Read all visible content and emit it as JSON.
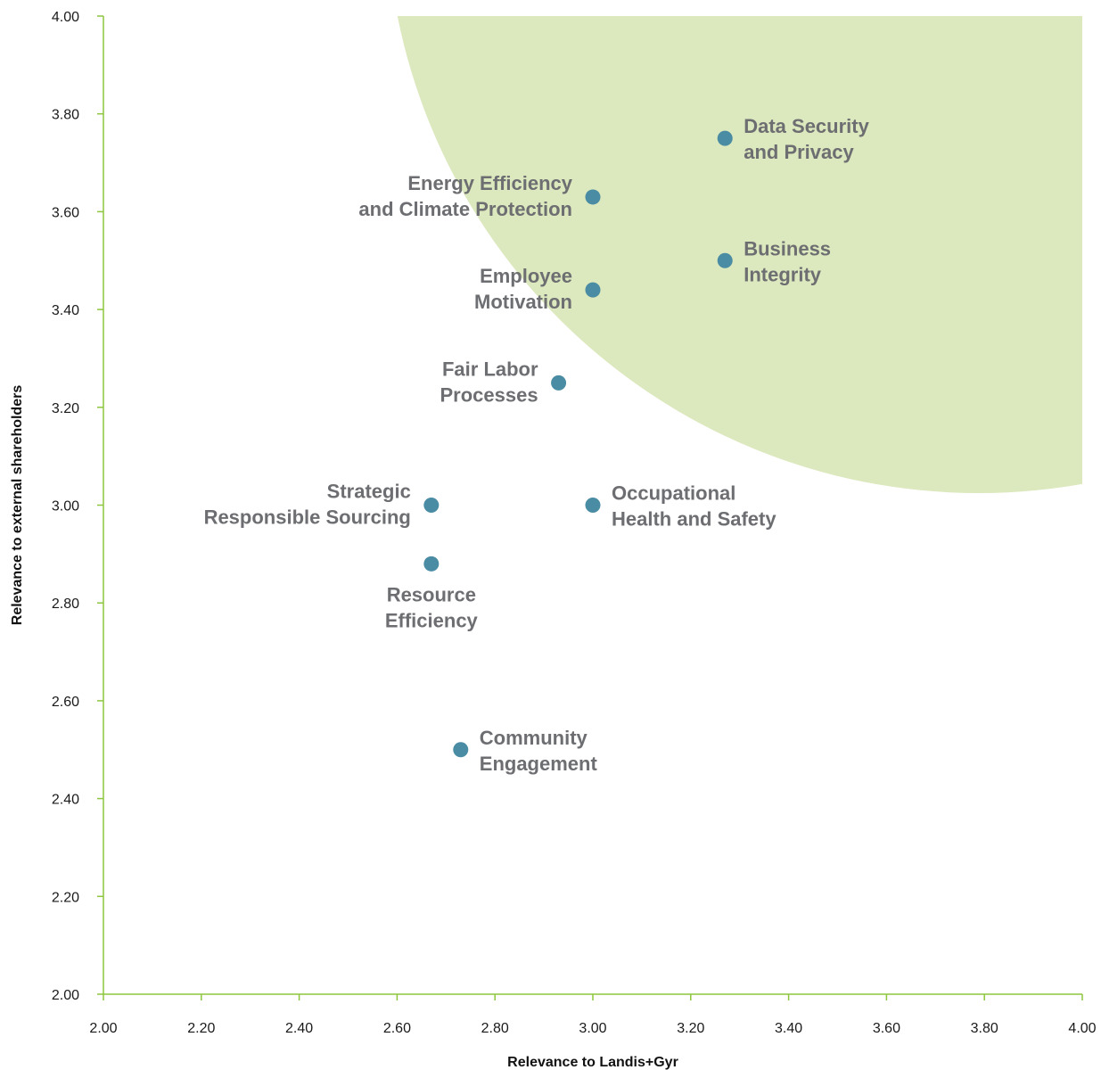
{
  "chart_data": {
    "type": "scatter",
    "title": "",
    "xlabel": "Relevance to Landis+Gyr",
    "ylabel": "Relevance to external shareholders",
    "xlim": [
      2.0,
      4.0
    ],
    "ylim": [
      2.0,
      4.0
    ],
    "x_ticks": [
      "2.00",
      "2.20",
      "2.40",
      "2.60",
      "2.80",
      "3.00",
      "3.20",
      "3.40",
      "3.60",
      "3.80",
      "4.00"
    ],
    "y_ticks": [
      "2.00",
      "2.20",
      "2.40",
      "2.60",
      "2.80",
      "3.00",
      "3.20",
      "3.40",
      "3.60",
      "3.80",
      "4.00"
    ],
    "grid": false,
    "points": [
      {
        "label": [
          "Data Security",
          "and Privacy"
        ],
        "x": 3.27,
        "y": 3.75,
        "label_side": "right"
      },
      {
        "label": [
          "Energy Efficiency",
          "and Climate Protection"
        ],
        "x": 3.0,
        "y": 3.63,
        "label_side": "left"
      },
      {
        "label": [
          "Business",
          "Integrity"
        ],
        "x": 3.27,
        "y": 3.5,
        "label_side": "right"
      },
      {
        "label": [
          "Employee",
          "Motivation"
        ],
        "x": 3.0,
        "y": 3.44,
        "label_side": "left"
      },
      {
        "label": [
          "Fair Labor",
          "Processes"
        ],
        "x": 2.93,
        "y": 3.25,
        "label_side": "left"
      },
      {
        "label": [
          "Strategic",
          "Responsible Sourcing"
        ],
        "x": 2.67,
        "y": 3.0,
        "label_side": "left"
      },
      {
        "label": [
          "Occupational",
          "Health and Safety"
        ],
        "x": 3.0,
        "y": 3.0,
        "label_side": "right"
      },
      {
        "label": [
          "Resource",
          "Efficiency"
        ],
        "x": 2.67,
        "y": 2.88,
        "label_side": "below"
      },
      {
        "label": [
          "Community",
          "Engagement"
        ],
        "x": 2.73,
        "y": 2.5,
        "label_side": "right"
      }
    ],
    "highlight_region": {
      "shape": "quarter-circle",
      "corner": "top-right",
      "color": "#dce8bd"
    },
    "colors": {
      "axis": "#8dc63f",
      "point": "#4a8ca3",
      "label": "#6d6e71",
      "region": "#dce8bd"
    }
  }
}
